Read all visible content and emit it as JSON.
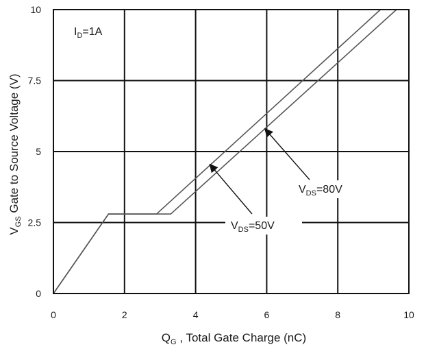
{
  "chart_data": {
    "type": "line",
    "xlabel": {
      "main": "Q",
      "sub": "G",
      "rest": " , Total Gate Charge (nC)"
    },
    "ylabel": {
      "main": "V",
      "sub": "GS",
      "rest": "   Gate to Source Voltage (V)"
    },
    "xlim": [
      0,
      10
    ],
    "ylim": [
      0,
      10
    ],
    "x_ticks": [
      0,
      2,
      4,
      6,
      8,
      10
    ],
    "x_tick_labels": [
      "0",
      "2",
      "4",
      "6",
      "8",
      "10"
    ],
    "y_ticks": [
      0,
      2.5,
      5,
      7.5,
      10
    ],
    "y_tick_labels": [
      "0",
      "2.5",
      "5",
      "7.5",
      "10"
    ],
    "grid": true,
    "condition": {
      "main": "I",
      "sub": "D",
      "rest": "=1A"
    },
    "series": [
      {
        "label": {
          "main": "V",
          "sub": "DS",
          "rest": "=50V"
        },
        "points": [
          [
            0,
            0
          ],
          [
            1.55,
            2.8
          ],
          [
            2.9,
            2.8
          ],
          [
            9.2,
            10
          ]
        ],
        "arrow_to": [
          4.4,
          4.55
        ]
      },
      {
        "label": {
          "main": "V",
          "sub": "DS",
          "rest": "=80V"
        },
        "points": [
          [
            0,
            0
          ],
          [
            1.55,
            2.8
          ],
          [
            3.3,
            2.8
          ],
          [
            9.65,
            10
          ]
        ],
        "arrow_to": [
          5.95,
          5.8
        ]
      }
    ],
    "line_color": "#555555",
    "grid_color": "#111111"
  }
}
